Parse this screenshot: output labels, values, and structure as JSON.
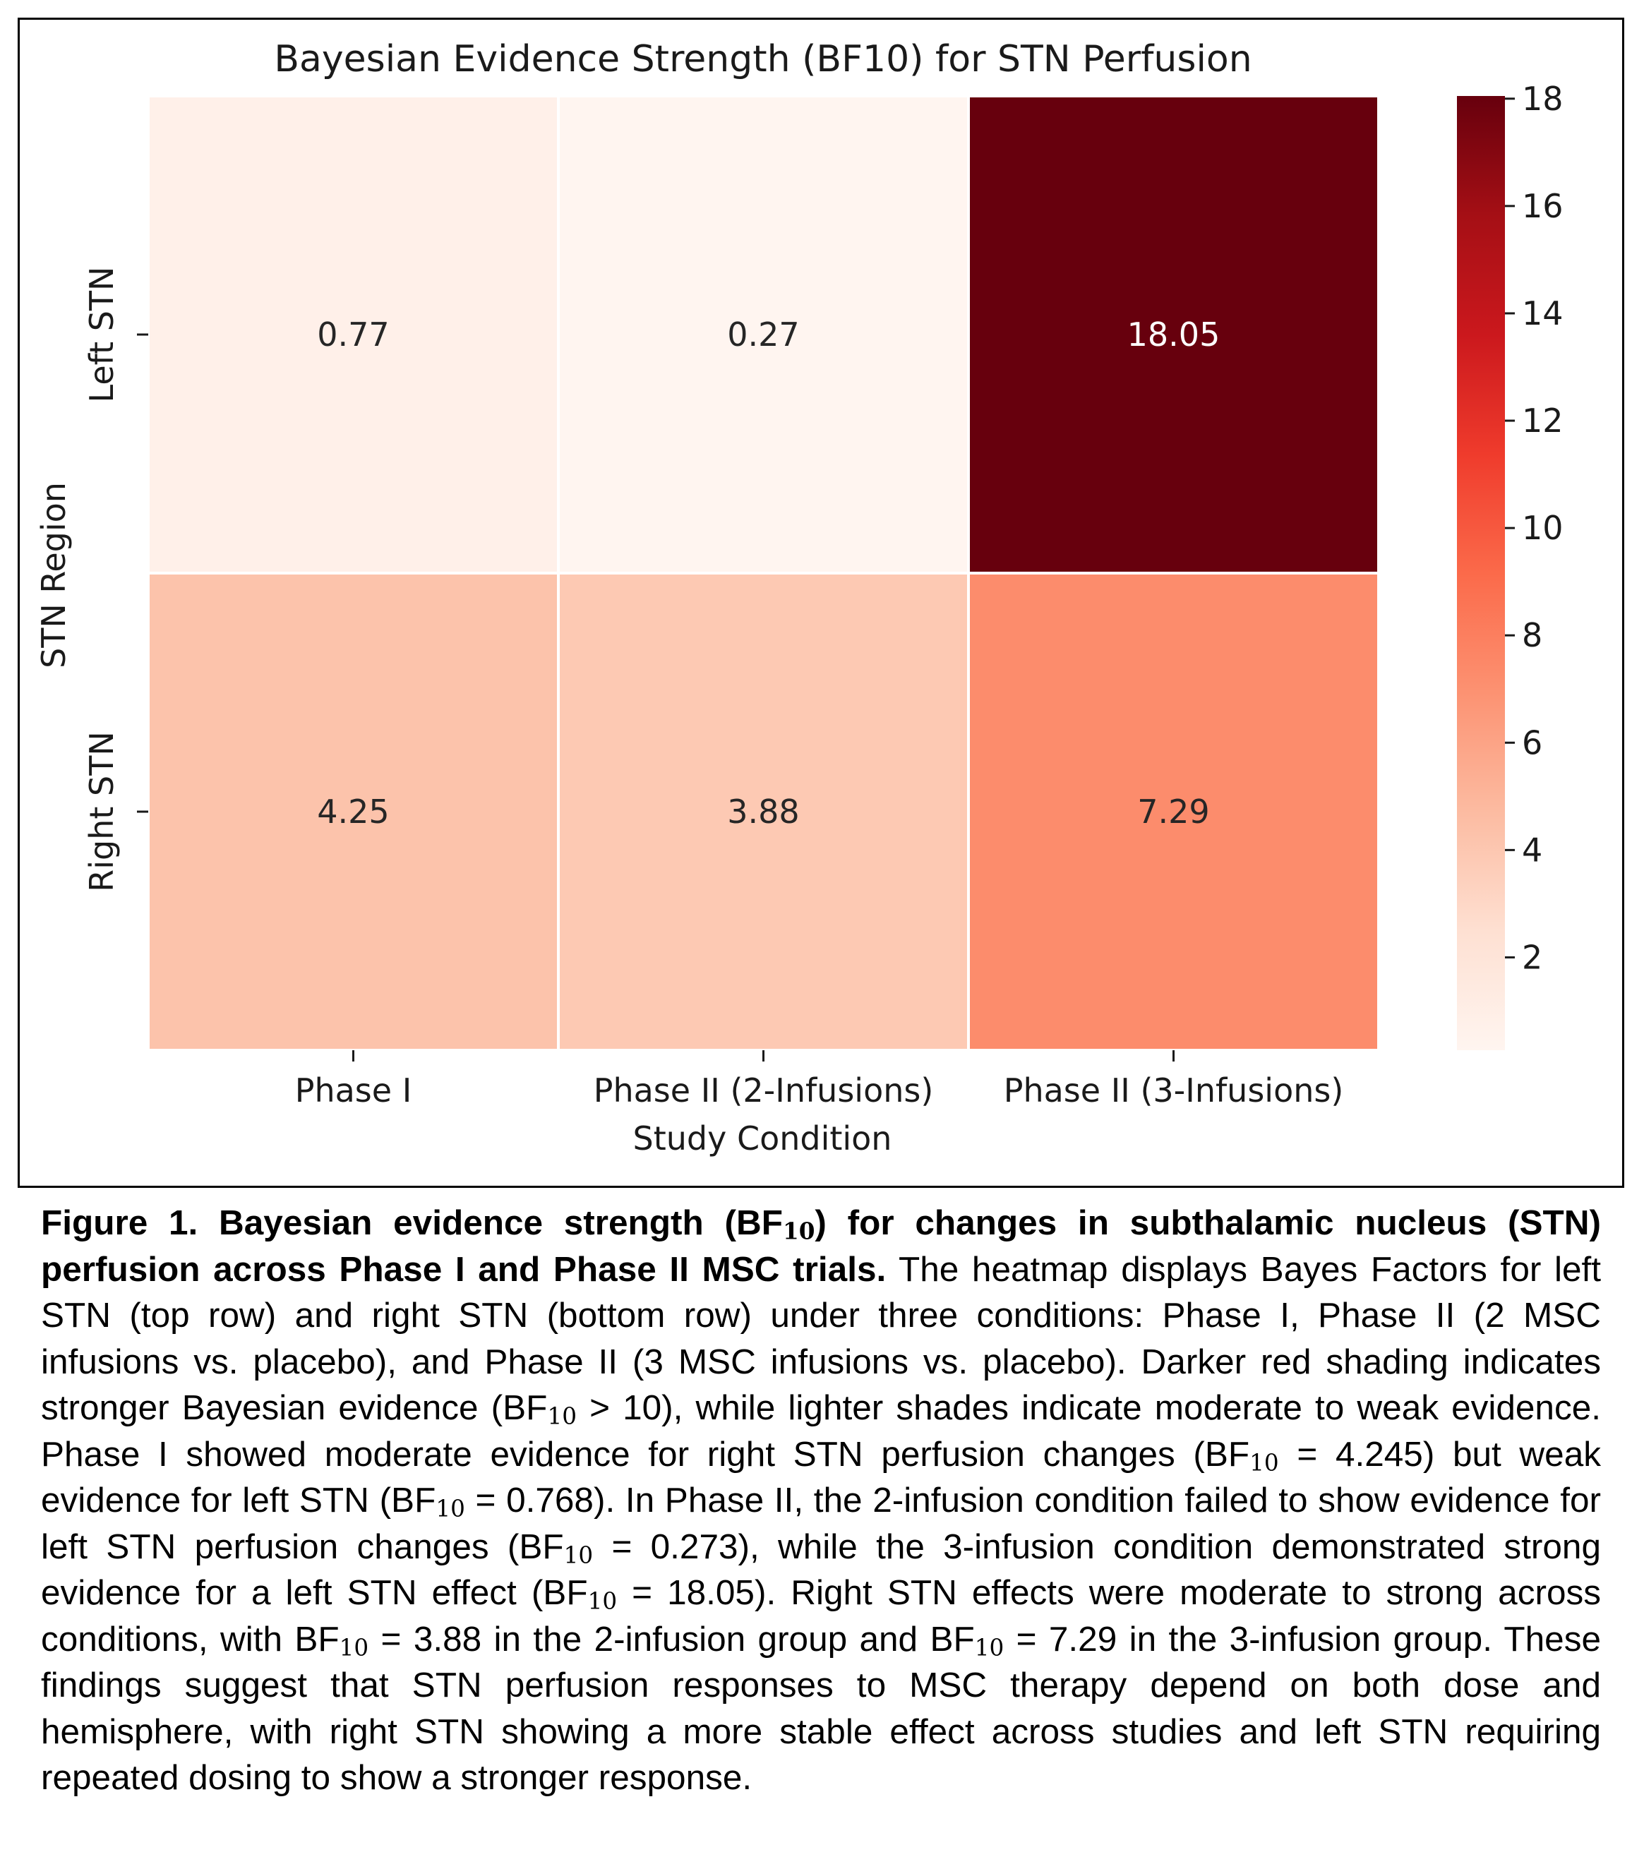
{
  "chart_data": {
    "type": "heatmap",
    "title": "Bayesian Evidence Strength (BF10) for STN Perfusion",
    "xlabel": "Study Condition",
    "ylabel": "STN Region",
    "x_categories": [
      "Phase I",
      "Phase II (2-Infusions)",
      "Phase II (3-Infusions)"
    ],
    "y_categories": [
      "Left STN",
      "Right STN"
    ],
    "values": [
      [
        0.77,
        0.27,
        18.05
      ],
      [
        4.25,
        3.88,
        7.29
      ]
    ],
    "value_labels": [
      [
        "0.77",
        "0.27",
        "18.05"
      ],
      [
        "4.25",
        "3.88",
        "7.29"
      ]
    ],
    "colorbar": {
      "range": [
        0.27,
        18.05
      ],
      "ticks": [
        "2",
        "4",
        "6",
        "8",
        "10",
        "12",
        "14",
        "16",
        "18"
      ],
      "colormap": "Reds"
    },
    "grid": false
  },
  "caption": {
    "bold_1": "Figure 1. Bayesian evidence strength (BF",
    "bold_sub": "10",
    "bold_2": ") for changes in subthalamic nucleus (STN) perfusion across Phase I and Phase II MSC trials.",
    "t1": " The heatmap displays Bayes Factors for left STN (top row) and right STN (bottom row) under three conditions: Phase I, Phase II (2 MSC infusions vs. placebo), and Phase II (3 MSC infusions vs. placebo). Darker red shading indicates stronger Bayesian evidence (BF",
    "t2": " > 10), while lighter shades indicate moderate to weak evidence. Phase I showed moderate evidence for right STN perfusion changes (BF",
    "t3": " = 4.245) but weak evidence for left STN (BF",
    "t4": " = 0.768). In Phase II, the 2-infusion condition failed to show evidence for left STN perfusion changes (BF",
    "t5": " = 0.273), while the 3-infusion condition demonstrated strong evidence for a left STN effect (BF",
    "t6": " = 18.05). Right STN effects were moderate to strong across conditions, with BF",
    "t7": " = 3.88 in the 2-infusion group and BF",
    "t8": " = 7.29 in the 3-infusion group. These findings suggest that STN perfusion responses to MSC therapy depend on both dose and hemisphere, with right STN showing a more stable effect across studies and left STN requiring repeated dosing to show a stronger response.",
    "sub": "10"
  }
}
